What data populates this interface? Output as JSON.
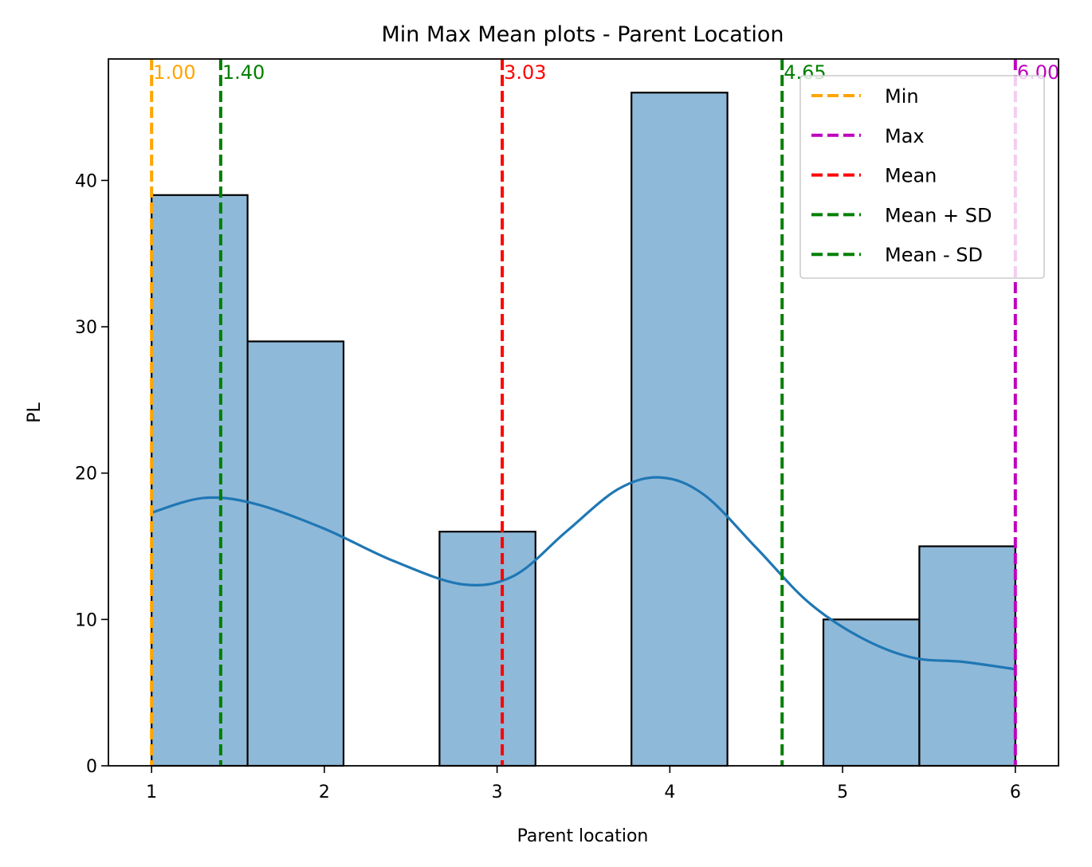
{
  "chart_data": {
    "type": "histogram",
    "title": "Min Max Mean plots - Parent Location",
    "xlabel": "Parent location",
    "ylabel": "PL",
    "xlim": [
      0.75,
      6.25
    ],
    "ylim": [
      0,
      48.3
    ],
    "x_ticks": [
      1,
      2,
      3,
      4,
      5,
      6
    ],
    "y_ticks": [
      0,
      10,
      20,
      30,
      40
    ],
    "grid": false,
    "legend_position": "top-right",
    "bars": [
      {
        "x0": 1.0,
        "x1": 1.5556,
        "count": 39
      },
      {
        "x0": 1.5556,
        "x1": 2.1111,
        "count": 29
      },
      {
        "x0": 2.1111,
        "x1": 2.6667,
        "count": 0
      },
      {
        "x0": 2.6667,
        "x1": 3.2222,
        "count": 16
      },
      {
        "x0": 3.2222,
        "x1": 3.7778,
        "count": 0
      },
      {
        "x0": 3.7778,
        "x1": 4.3333,
        "count": 46
      },
      {
        "x0": 4.3333,
        "x1": 4.8889,
        "count": 0
      },
      {
        "x0": 4.8889,
        "x1": 5.4444,
        "count": 10
      },
      {
        "x0": 5.4444,
        "x1": 6.0,
        "count": 15
      }
    ],
    "bar_color": "#8fb9d9",
    "kde": {
      "color": "#1f77b4",
      "x": [
        1.0,
        1.3,
        1.6,
        2.0,
        2.4,
        2.8,
        3.1,
        3.4,
        3.7,
        3.95,
        4.2,
        4.5,
        4.8,
        5.1,
        5.4,
        5.7,
        6.0
      ],
      "y": [
        17.3,
        18.3,
        17.9,
        16.2,
        14.0,
        12.4,
        13.0,
        16.0,
        18.9,
        19.7,
        18.5,
        14.9,
        11.2,
        8.8,
        7.4,
        7.1,
        6.6
      ]
    },
    "vlines": [
      {
        "name": "Min",
        "value": 1.0,
        "label": "1.00",
        "color": "#ffa500"
      },
      {
        "name": "Max",
        "value": 6.0,
        "label": "6.00",
        "color": "#bf00bf"
      },
      {
        "name": "Mean",
        "value": 3.03,
        "label": "3.03",
        "color": "#ff0000"
      },
      {
        "name": "Mean + SD",
        "value": 4.65,
        "label": "4.65",
        "color": "#008000"
      },
      {
        "name": "Mean - SD",
        "value": 1.4,
        "label": "1.40",
        "color": "#008000"
      }
    ],
    "legend": [
      "Min",
      "Max",
      "Mean",
      "Mean + SD",
      "Mean - SD"
    ]
  }
}
